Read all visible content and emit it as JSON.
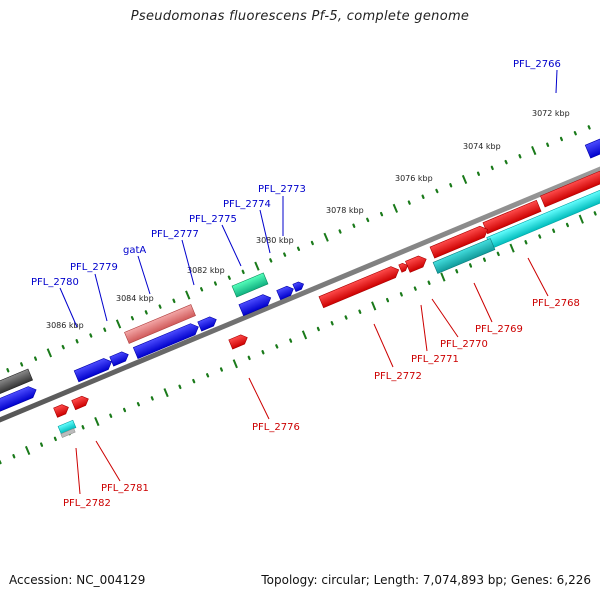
{
  "title": "Pseudomonas fluorescens Pf-5, complete genome",
  "accession_text": "Accession: NC_004129",
  "topology_text": "Topology: circular; Length: 7,074,893 bp; Genes: 6,226",
  "colors": {
    "backbone": "#7a7a7a",
    "forward_gene": "#0000ee",
    "reverse_gene": "#ee0000",
    "rna_gene": "#22dd99",
    "pseudo_gene": "#e87a7a",
    "cyan_feature": "#00e5e5",
    "grey_feature": "#555555",
    "tick": "#1a7a1a",
    "forward_label": "#0000cc",
    "reverse_label": "#cc0000"
  },
  "scale_labels": [
    "3072 kbp",
    "3074 kbp",
    "3076 kbp",
    "3078 kbp",
    "3080 kbp",
    "3082 kbp",
    "3084 kbp",
    "3086 kbp"
  ],
  "labels_forward": [
    "PFL_2766",
    "PFL_2773",
    "PFL_2774",
    "PFL_2775",
    "PFL_2777",
    "gatA",
    "PFL_2779",
    "PFL_2780"
  ],
  "labels_reverse": [
    "PFL_2768",
    "PFL_2769",
    "PFL_2770",
    "PFL_2771",
    "PFL_2772",
    "PFL_2776",
    "PFL_2781",
    "PFL_2782"
  ]
}
